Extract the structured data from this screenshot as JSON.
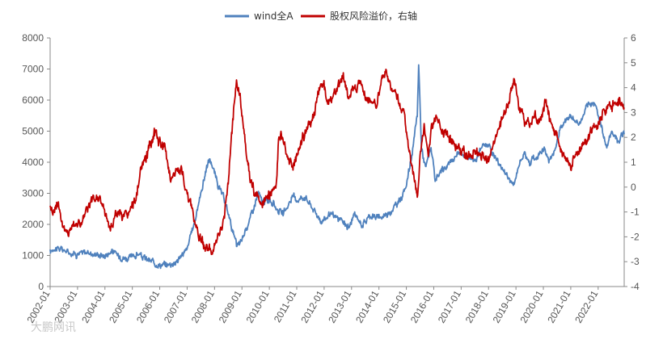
{
  "chart_data": {
    "type": "line",
    "title": "",
    "xlabel": "",
    "ylabel_left": "",
    "ylabel_right": "",
    "legend": {
      "placement": "top-center"
    },
    "grid": false,
    "x_tick_labels": [
      "2002-01",
      "2003-01",
      "2004-01",
      "2005-01",
      "2006-01",
      "2007-01",
      "2008-01",
      "2009-01",
      "2010-01",
      "2011-01",
      "2012-01",
      "2013-01",
      "2014-01",
      "2015-01",
      "2016-01",
      "2017-01",
      "2018-01",
      "2019-01",
      "2020-01",
      "2021-01",
      "2022-01"
    ],
    "x_range": [
      2002.0,
      2022.95
    ],
    "y_left": {
      "range": [
        0,
        8000
      ],
      "ticks": [
        "0",
        "1000",
        "2000",
        "3000",
        "4000",
        "5000",
        "6000",
        "7000",
        "8000"
      ]
    },
    "y_right": {
      "range": [
        -4,
        6
      ],
      "ticks": [
        "-4",
        "-3",
        "-2",
        "-1",
        "0",
        "1",
        "2",
        "3",
        "4",
        "5",
        "6"
      ]
    },
    "series": [
      {
        "name": "wind全A",
        "axis": "left",
        "color": "#4f81bd",
        "points": [
          [
            2002.0,
            1100
          ],
          [
            2002.15,
            1250
          ],
          [
            2002.4,
            1200
          ],
          [
            2002.7,
            1100
          ],
          [
            2003.0,
            1050
          ],
          [
            2003.3,
            1100
          ],
          [
            2003.6,
            1050
          ],
          [
            2004.0,
            1000
          ],
          [
            2004.25,
            1150
          ],
          [
            2004.5,
            1000
          ],
          [
            2004.8,
            900
          ],
          [
            2005.0,
            950
          ],
          [
            2005.2,
            1050
          ],
          [
            2005.45,
            900
          ],
          [
            2005.7,
            800
          ],
          [
            2006.0,
            700
          ],
          [
            2006.3,
            700
          ],
          [
            2006.6,
            800
          ],
          [
            2007.0,
            1200
          ],
          [
            2007.3,
            2200
          ],
          [
            2007.5,
            3000
          ],
          [
            2007.7,
            3800
          ],
          [
            2007.83,
            4100
          ],
          [
            2007.95,
            3800
          ],
          [
            2008.15,
            3200
          ],
          [
            2008.35,
            2800
          ],
          [
            2008.55,
            2200
          ],
          [
            2008.8,
            1300
          ],
          [
            2008.95,
            1400
          ],
          [
            2009.3,
            2200
          ],
          [
            2009.6,
            3000
          ],
          [
            2009.75,
            2700
          ],
          [
            2010.0,
            2800
          ],
          [
            2010.3,
            2500
          ],
          [
            2010.5,
            2300
          ],
          [
            2010.85,
            2900
          ],
          [
            2011.0,
            2800
          ],
          [
            2011.3,
            2900
          ],
          [
            2011.6,
            2500
          ],
          [
            2011.9,
            2100
          ],
          [
            2012.2,
            2300
          ],
          [
            2012.5,
            2200
          ],
          [
            2012.9,
            1900
          ],
          [
            2013.1,
            2300
          ],
          [
            2013.4,
            2000
          ],
          [
            2013.7,
            2300
          ],
          [
            2014.0,
            2200
          ],
          [
            2014.4,
            2400
          ],
          [
            2014.7,
            2700
          ],
          [
            2014.95,
            3100
          ],
          [
            2015.2,
            4200
          ],
          [
            2015.4,
            5500
          ],
          [
            2015.45,
            7200
          ],
          [
            2015.55,
            4500
          ],
          [
            2015.7,
            3800
          ],
          [
            2015.9,
            4500
          ],
          [
            2016.05,
            3400
          ],
          [
            2016.3,
            3700
          ],
          [
            2016.6,
            4000
          ],
          [
            2016.9,
            4300
          ],
          [
            2017.2,
            4200
          ],
          [
            2017.5,
            4100
          ],
          [
            2017.8,
            4500
          ],
          [
            2018.0,
            4600
          ],
          [
            2018.15,
            4300
          ],
          [
            2018.5,
            3800
          ],
          [
            2018.8,
            3400
          ],
          [
            2018.95,
            3300
          ],
          [
            2019.15,
            4100
          ],
          [
            2019.3,
            4300
          ],
          [
            2019.5,
            4000
          ],
          [
            2019.8,
            4200
          ],
          [
            2020.0,
            4500
          ],
          [
            2020.2,
            4000
          ],
          [
            2020.4,
            4300
          ],
          [
            2020.6,
            5100
          ],
          [
            2020.9,
            5400
          ],
          [
            2021.0,
            5500
          ],
          [
            2021.3,
            5200
          ],
          [
            2021.6,
            5800
          ],
          [
            2021.9,
            5900
          ],
          [
            2022.1,
            5200
          ],
          [
            2022.3,
            4500
          ],
          [
            2022.5,
            5000
          ],
          [
            2022.7,
            4700
          ],
          [
            2022.95,
            4900
          ]
        ]
      },
      {
        "name": "股权风险溢价，右轴",
        "axis": "right",
        "color": "#c00000",
        "points": [
          [
            2002.0,
            -0.7
          ],
          [
            2002.1,
            -1.0
          ],
          [
            2002.3,
            -0.6
          ],
          [
            2002.45,
            -1.5
          ],
          [
            2002.6,
            -1.9
          ],
          [
            2002.9,
            -1.4
          ],
          [
            2003.1,
            -1.5
          ],
          [
            2003.4,
            -0.8
          ],
          [
            2003.6,
            -0.5
          ],
          [
            2003.8,
            -0.4
          ],
          [
            2004.0,
            -1.0
          ],
          [
            2004.2,
            -1.7
          ],
          [
            2004.4,
            -1.0
          ],
          [
            2004.7,
            -1.2
          ],
          [
            2004.9,
            -1.0
          ],
          [
            2005.1,
            -0.6
          ],
          [
            2005.3,
            0.6
          ],
          [
            2005.5,
            1.2
          ],
          [
            2005.7,
            1.8
          ],
          [
            2005.8,
            2.2
          ],
          [
            2006.0,
            1.8
          ],
          [
            2006.2,
            1.5
          ],
          [
            2006.4,
            0.4
          ],
          [
            2006.6,
            0.6
          ],
          [
            2006.8,
            0.7
          ],
          [
            2007.0,
            -0.3
          ],
          [
            2007.2,
            -1.0
          ],
          [
            2007.4,
            -1.8
          ],
          [
            2007.6,
            -2.3
          ],
          [
            2007.9,
            -2.6
          ],
          [
            2008.1,
            -2.2
          ],
          [
            2008.3,
            -1.5
          ],
          [
            2008.5,
            0.2
          ],
          [
            2008.65,
            2.5
          ],
          [
            2008.8,
            4.2
          ],
          [
            2008.95,
            3.5
          ],
          [
            2009.1,
            2.0
          ],
          [
            2009.3,
            0.3
          ],
          [
            2009.5,
            -0.3
          ],
          [
            2009.7,
            -0.8
          ],
          [
            2009.9,
            -0.5
          ],
          [
            2010.1,
            -0.2
          ],
          [
            2010.25,
            0.2
          ],
          [
            2010.35,
            2.0
          ],
          [
            2010.5,
            2.0
          ],
          [
            2010.65,
            1.2
          ],
          [
            2010.85,
            0.8
          ],
          [
            2011.0,
            1.3
          ],
          [
            2011.2,
            2.0
          ],
          [
            2011.4,
            2.4
          ],
          [
            2011.6,
            2.8
          ],
          [
            2011.8,
            3.9
          ],
          [
            2011.95,
            4.3
          ],
          [
            2012.1,
            3.5
          ],
          [
            2012.3,
            3.6
          ],
          [
            2012.5,
            4.0
          ],
          [
            2012.7,
            4.5
          ],
          [
            2012.9,
            3.6
          ],
          [
            2013.1,
            3.9
          ],
          [
            2013.3,
            4.4
          ],
          [
            2013.5,
            3.7
          ],
          [
            2013.7,
            3.5
          ],
          [
            2013.9,
            3.2
          ],
          [
            2014.1,
            4.3
          ],
          [
            2014.3,
            4.5
          ],
          [
            2014.5,
            4.0
          ],
          [
            2014.7,
            3.5
          ],
          [
            2014.9,
            3.0
          ],
          [
            2015.1,
            1.5
          ],
          [
            2015.3,
            0.2
          ],
          [
            2015.4,
            -0.4
          ],
          [
            2015.5,
            1.2
          ],
          [
            2015.65,
            2.5
          ],
          [
            2015.8,
            1.5
          ],
          [
            2015.95,
            2.5
          ],
          [
            2016.1,
            2.8
          ],
          [
            2016.3,
            2.3
          ],
          [
            2016.6,
            2.0
          ],
          [
            2016.9,
            1.6
          ],
          [
            2017.2,
            1.3
          ],
          [
            2017.5,
            1.4
          ],
          [
            2017.8,
            1.2
          ],
          [
            2018.0,
            1.0
          ],
          [
            2018.15,
            1.6
          ],
          [
            2018.35,
            2.3
          ],
          [
            2018.6,
            3.0
          ],
          [
            2018.8,
            3.8
          ],
          [
            2018.95,
            4.3
          ],
          [
            2019.1,
            3.2
          ],
          [
            2019.3,
            2.7
          ],
          [
            2019.5,
            2.6
          ],
          [
            2019.7,
            2.8
          ],
          [
            2019.9,
            2.7
          ],
          [
            2020.1,
            3.5
          ],
          [
            2020.25,
            2.7
          ],
          [
            2020.4,
            2.3
          ],
          [
            2020.6,
            1.6
          ],
          [
            2020.8,
            1.2
          ],
          [
            2021.0,
            0.9
          ],
          [
            2021.2,
            1.3
          ],
          [
            2021.5,
            1.8
          ],
          [
            2021.8,
            2.3
          ],
          [
            2022.0,
            2.5
          ],
          [
            2022.2,
            3.0
          ],
          [
            2022.4,
            3.4
          ],
          [
            2022.6,
            3.3
          ],
          [
            2022.8,
            3.5
          ],
          [
            2022.95,
            3.2
          ]
        ]
      }
    ]
  },
  "watermark": "大鹏网讯"
}
